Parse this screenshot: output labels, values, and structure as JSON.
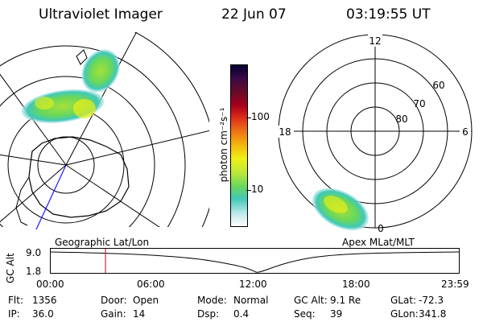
{
  "header": {
    "title": "Ultraviolet Imager",
    "date": "22 Jun 07",
    "time": "03:19:55 UT"
  },
  "panels": {
    "geo_label": "Geographic Lat/Lon",
    "apex_label": "Apex MLat/MLT",
    "apex_mlt_labels": {
      "top": "12",
      "left": "18",
      "right": "6",
      "bottom": "0"
    },
    "apex_lat_labels": [
      "60",
      "70",
      "80"
    ]
  },
  "colorbar": {
    "unit_label": "photon cm⁻²s⁻¹",
    "ticks": [
      "100",
      "10"
    ],
    "colors": [
      "#000033",
      "#3a0a44",
      "#6a0a2a",
      "#a8001c",
      "#e0301a",
      "#f07a14",
      "#f5b90c",
      "#eef016",
      "#bce83a",
      "#6ad85a",
      "#40c8b8",
      "#bde8ec",
      "#ffffff"
    ]
  },
  "altitude_plot": {
    "axis_title": "GC Alt",
    "ytick_top": "9.0",
    "ytick_bottom": "1.8",
    "xticks": [
      "00:00",
      "06:00",
      "12:00",
      "18:00",
      "23:59"
    ],
    "marker_color": "#cc0000"
  },
  "status": {
    "row1": [
      {
        "key": "Flt:",
        "value": "1356"
      },
      {
        "key": "Door:",
        "value": "Open"
      },
      {
        "key": "Mode:",
        "value": "Normal"
      },
      {
        "key": "GC Alt:",
        "value": "9.1 Re"
      },
      {
        "key": "GLat:",
        "value": "-72.3"
      }
    ],
    "row2": [
      {
        "key": "IP:",
        "value": "36.0"
      },
      {
        "key": "Gain:",
        "value": "14"
      },
      {
        "key": "Dsp:",
        "value": "0.4"
      },
      {
        "key": "Seq:",
        "value": "39"
      },
      {
        "key": "GLon:",
        "value": "341.8"
      }
    ]
  }
}
